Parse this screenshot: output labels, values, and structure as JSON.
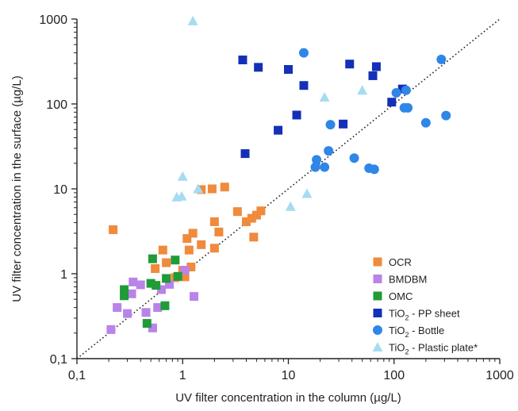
{
  "chart_data": {
    "type": "scatter",
    "xscale": "log",
    "yscale": "log",
    "xlim": [
      0.1,
      1000
    ],
    "ylim": [
      0.1,
      1000
    ],
    "xticks": [
      "0,1",
      "1",
      "10",
      "100",
      "1000"
    ],
    "yticks": [
      "0,1",
      "1",
      "10",
      "100",
      "1000"
    ],
    "xlabel": "UV filter concentration in the column (µg/L)",
    "ylabel": "UV filter concentration in the surface (µg/L)",
    "grid": false,
    "legend_position": "bottom-right",
    "reference_line": {
      "style": "dotted",
      "from": [
        0.1,
        0.1
      ],
      "to": [
        1000,
        1000
      ]
    },
    "series": [
      {
        "name": "OCR",
        "marker": "square",
        "color": "#f08a3c",
        "points": [
          [
            0.22,
            3.3
          ],
          [
            0.55,
            1.15
          ],
          [
            0.65,
            1.9
          ],
          [
            0.7,
            1.35
          ],
          [
            0.85,
            0.9
          ],
          [
            1.0,
            1.1
          ],
          [
            1.05,
            0.92
          ],
          [
            1.1,
            2.6
          ],
          [
            1.15,
            1.9
          ],
          [
            1.2,
            1.2
          ],
          [
            1.25,
            3.0
          ],
          [
            1.5,
            9.8
          ],
          [
            1.5,
            2.2
          ],
          [
            1.9,
            10.0
          ],
          [
            2.0,
            2.0
          ],
          [
            2.0,
            4.1
          ],
          [
            2.2,
            3.1
          ],
          [
            2.5,
            10.5
          ],
          [
            3.3,
            5.4
          ],
          [
            4.0,
            4.1
          ],
          [
            4.5,
            4.5
          ],
          [
            4.7,
            2.7
          ],
          [
            5.0,
            4.9
          ],
          [
            5.5,
            5.5
          ]
        ]
      },
      {
        "name": "BMDBM",
        "marker": "square",
        "color": "#b983e8",
        "points": [
          [
            0.21,
            0.22
          ],
          [
            0.24,
            0.4
          ],
          [
            0.3,
            0.34
          ],
          [
            0.33,
            0.58
          ],
          [
            0.34,
            0.8
          ],
          [
            0.4,
            0.74
          ],
          [
            0.45,
            0.35
          ],
          [
            0.52,
            0.23
          ],
          [
            0.58,
            0.4
          ],
          [
            0.63,
            0.65
          ],
          [
            0.75,
            0.75
          ],
          [
            1.05,
            1.1
          ],
          [
            1.28,
            0.54
          ]
        ]
      },
      {
        "name": "OMC",
        "marker": "square",
        "color": "#1f9b38",
        "points": [
          [
            0.28,
            0.55
          ],
          [
            0.28,
            0.65
          ],
          [
            0.46,
            0.26
          ],
          [
            0.5,
            0.77
          ],
          [
            0.52,
            1.5
          ],
          [
            0.56,
            0.73
          ],
          [
            0.68,
            0.42
          ],
          [
            0.7,
            0.88
          ],
          [
            0.85,
            1.45
          ],
          [
            0.9,
            0.93
          ]
        ]
      },
      {
        "name": "TiO2 - PP sheet",
        "marker": "square",
        "color": "#1430b8",
        "points": [
          [
            3.7,
            330
          ],
          [
            3.9,
            26
          ],
          [
            5.2,
            270
          ],
          [
            8.0,
            49
          ],
          [
            10.0,
            255
          ],
          [
            12.0,
            74
          ],
          [
            14.0,
            165
          ],
          [
            33.0,
            58
          ],
          [
            38.0,
            295
          ],
          [
            63.0,
            215
          ],
          [
            68.0,
            275
          ],
          [
            95.0,
            105
          ],
          [
            120.0,
            150
          ]
        ]
      },
      {
        "name": "TiO2 - Bottle",
        "marker": "circle",
        "color": "#2f86e8",
        "points": [
          [
            14.0,
            400
          ],
          [
            18.0,
            18
          ],
          [
            18.5,
            22
          ],
          [
            22.0,
            18
          ],
          [
            24.0,
            28
          ],
          [
            25.0,
            57
          ],
          [
            42.0,
            23
          ],
          [
            58.0,
            17.5
          ],
          [
            65.0,
            17
          ],
          [
            105.0,
            135
          ],
          [
            125.0,
            90
          ],
          [
            130.0,
            145
          ],
          [
            135.0,
            90
          ],
          [
            200.0,
            60
          ],
          [
            280.0,
            335
          ],
          [
            310.0,
            73
          ]
        ]
      },
      {
        "name": "TiO2 - Plastic plate*",
        "marker": "triangle",
        "color": "#a6dcf2",
        "points": [
          [
            1.25,
            950
          ],
          [
            0.88,
            8.0
          ],
          [
            0.98,
            8.2
          ],
          [
            1.0,
            14.0
          ],
          [
            1.4,
            10.0
          ],
          [
            10.5,
            6.2
          ],
          [
            15.0,
            8.8
          ],
          [
            22.0,
            120
          ],
          [
            50.0,
            145
          ]
        ]
      }
    ]
  },
  "legend": {
    "entries": [
      {
        "pre": "OCR",
        "sub": "",
        "post": ""
      },
      {
        "pre": "BMDBM",
        "sub": "",
        "post": ""
      },
      {
        "pre": "OMC",
        "sub": "",
        "post": ""
      },
      {
        "pre": "TiO",
        "sub": "2",
        "post": "  - PP sheet"
      },
      {
        "pre": "TiO",
        "sub": "2",
        "post": "  - Bottle"
      },
      {
        "pre": "TiO",
        "sub": "2",
        "post": "  - Plastic plate*"
      }
    ]
  }
}
